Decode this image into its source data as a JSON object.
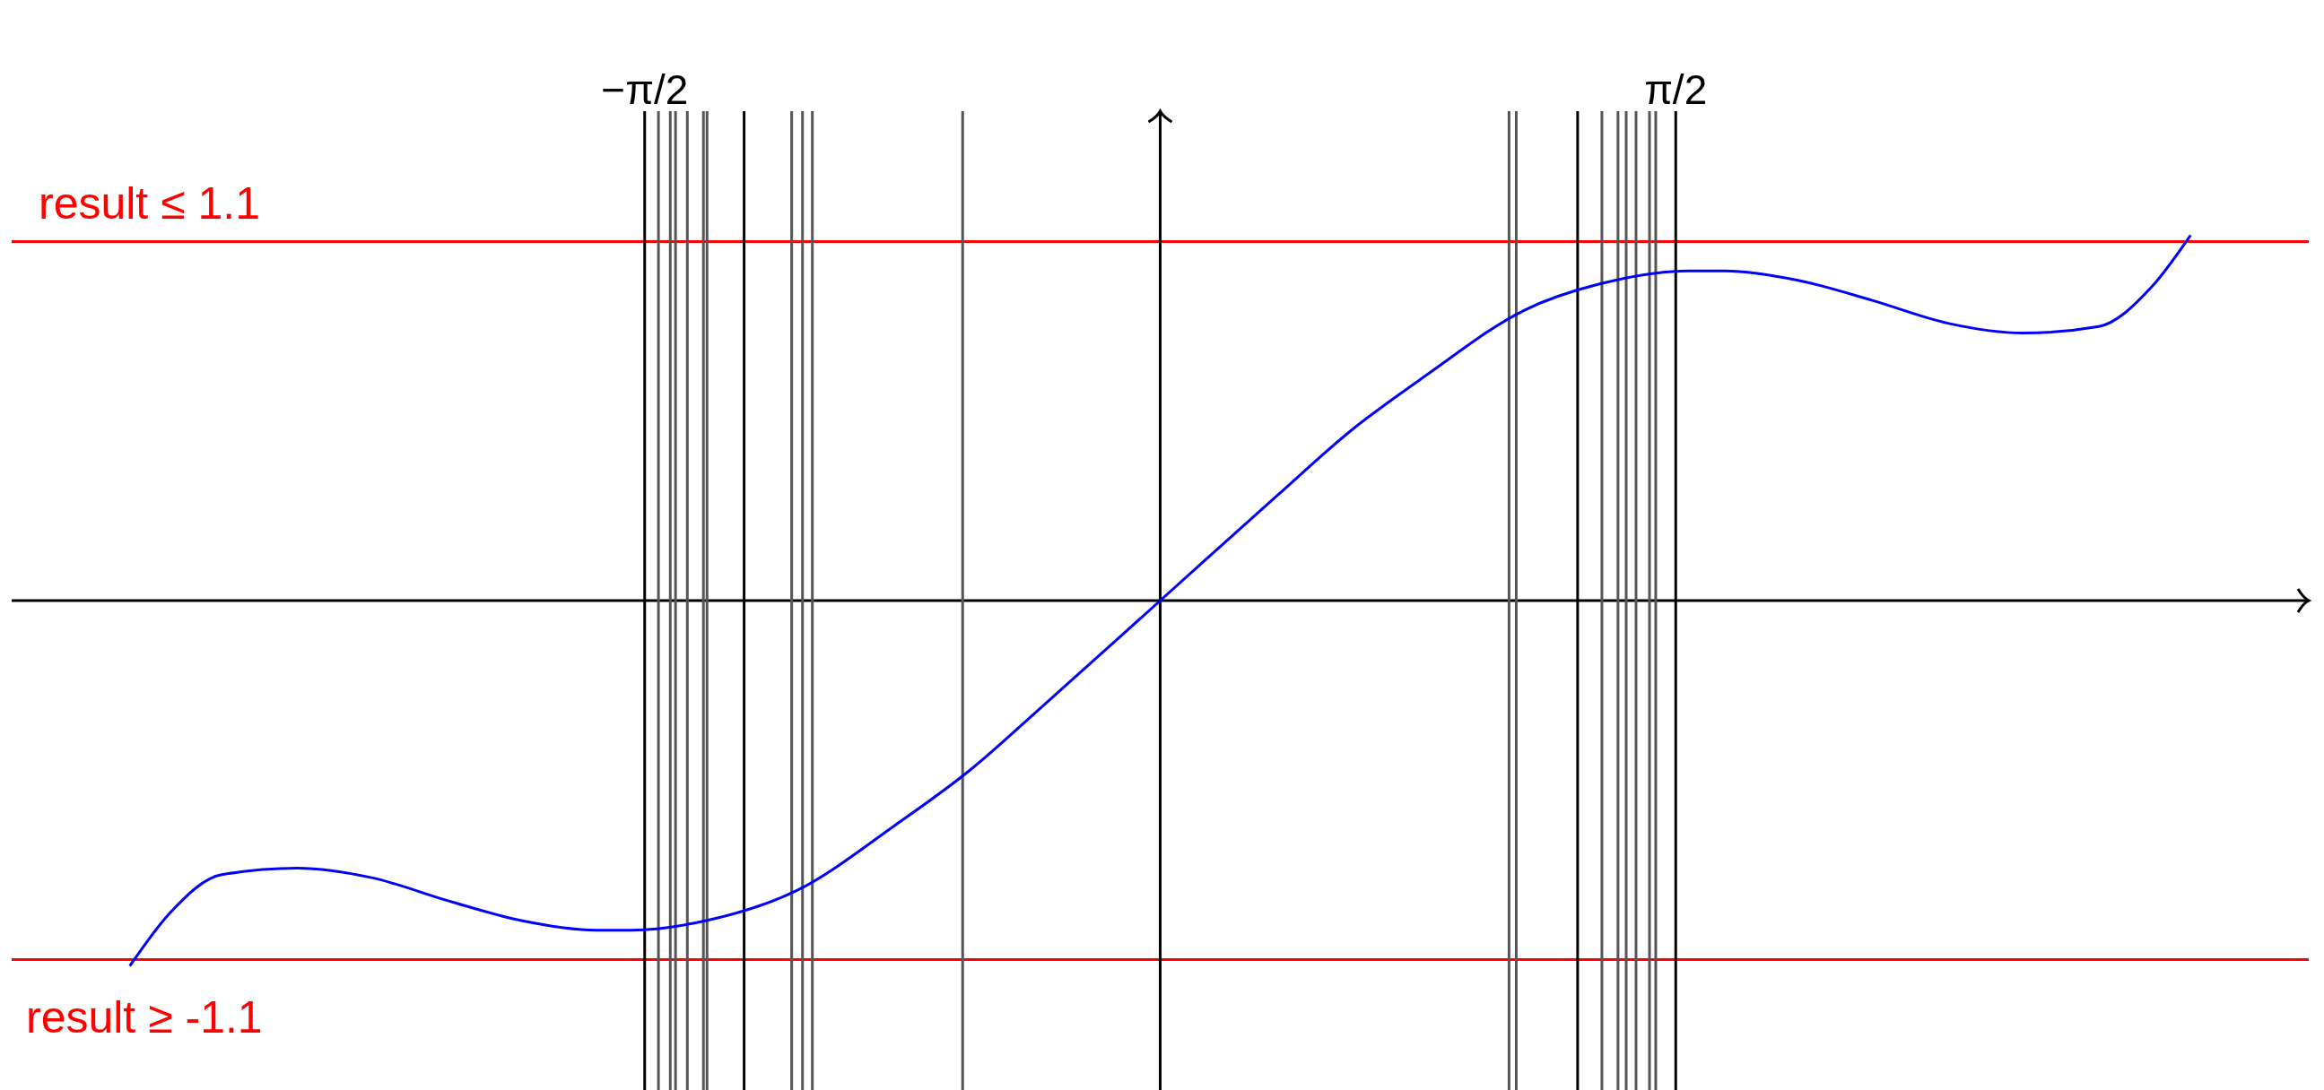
{
  "chart_data": {
    "type": "line",
    "x": [
      -3.14,
      -3.02,
      -2.86,
      -2.63,
      -2.4,
      -2.17,
      -1.95,
      -1.72,
      -1.61,
      -1.38,
      -1.11,
      -0.81,
      -0.58,
      -0.36,
      0,
      0.36,
      0.58,
      0.81,
      1.11,
      1.38,
      1.61,
      1.72,
      1.95,
      2.17,
      2.4,
      2.63,
      2.86,
      3.02,
      3.14
    ],
    "series": [
      {
        "color": "#0000ff",
        "values": [
          -1.12,
          -0.96,
          -0.84,
          -0.82,
          -0.85,
          -0.92,
          -0.98,
          -1.01,
          -1.01,
          -0.98,
          -0.89,
          -0.69,
          -0.52,
          -0.325,
          0,
          0.325,
          0.52,
          0.69,
          0.89,
          0.98,
          1.01,
          1.01,
          0.98,
          0.92,
          0.85,
          0.82,
          0.84,
          0.96,
          1.12
        ]
      }
    ],
    "xlim": [
      -3.5,
      3.5
    ],
    "ylim": [
      -1.5,
      1.5
    ],
    "xticks": [
      {
        "value": -1.5708,
        "label": "−π/2"
      },
      {
        "value": 1.5708,
        "label": "π/2"
      }
    ],
    "marker": "none",
    "line_style": "solid",
    "ref_lines": [
      {
        "axis": "y",
        "value": 1.1,
        "label": "result ≤ 1.1",
        "color": "#ff0000"
      },
      {
        "axis": "y",
        "value": -1.1,
        "label": "result ≥ -1.1",
        "color": "#ff0000"
      },
      {
        "axis": "y",
        "value": 0,
        "color": "#000000"
      },
      {
        "axis": "x",
        "value": 0,
        "color": "#000000"
      },
      {
        "axis": "x",
        "value": -1.571,
        "color": "#000000"
      },
      {
        "axis": "x",
        "value": -1.529,
        "color": "#555555"
      },
      {
        "axis": "x",
        "value": -1.493,
        "color": "#555555"
      },
      {
        "axis": "x",
        "value": -1.477,
        "color": "#555555"
      },
      {
        "axis": "x",
        "value": -1.441,
        "color": "#555555"
      },
      {
        "axis": "x",
        "value": -1.392,
        "color": "#555555"
      },
      {
        "axis": "x",
        "value": -1.381,
        "color": "#555555"
      },
      {
        "axis": "x",
        "value": -1.268,
        "color": "#000000"
      },
      {
        "axis": "x",
        "value": -1.123,
        "color": "#555555"
      },
      {
        "axis": "x",
        "value": -1.09,
        "color": "#555555"
      },
      {
        "axis": "x",
        "value": -1.06,
        "color": "#555555"
      },
      {
        "axis": "x",
        "value": -0.602,
        "color": "#555555"
      },
      {
        "axis": "x",
        "value": 1.063,
        "color": "#555555"
      },
      {
        "axis": "x",
        "value": 1.085,
        "color": "#555555"
      },
      {
        "axis": "x",
        "value": 1.272,
        "color": "#000000"
      },
      {
        "axis": "x",
        "value": 1.346,
        "color": "#555555"
      },
      {
        "axis": "x",
        "value": 1.395,
        "color": "#555555"
      },
      {
        "axis": "x",
        "value": 1.42,
        "color": "#555555"
      },
      {
        "axis": "x",
        "value": 1.45,
        "color": "#555555"
      },
      {
        "axis": "x",
        "value": 1.491,
        "color": "#555555"
      },
      {
        "axis": "x",
        "value": 1.51,
        "color": "#555555"
      },
      {
        "axis": "x",
        "value": 1.571,
        "color": "#000000"
      }
    ]
  }
}
